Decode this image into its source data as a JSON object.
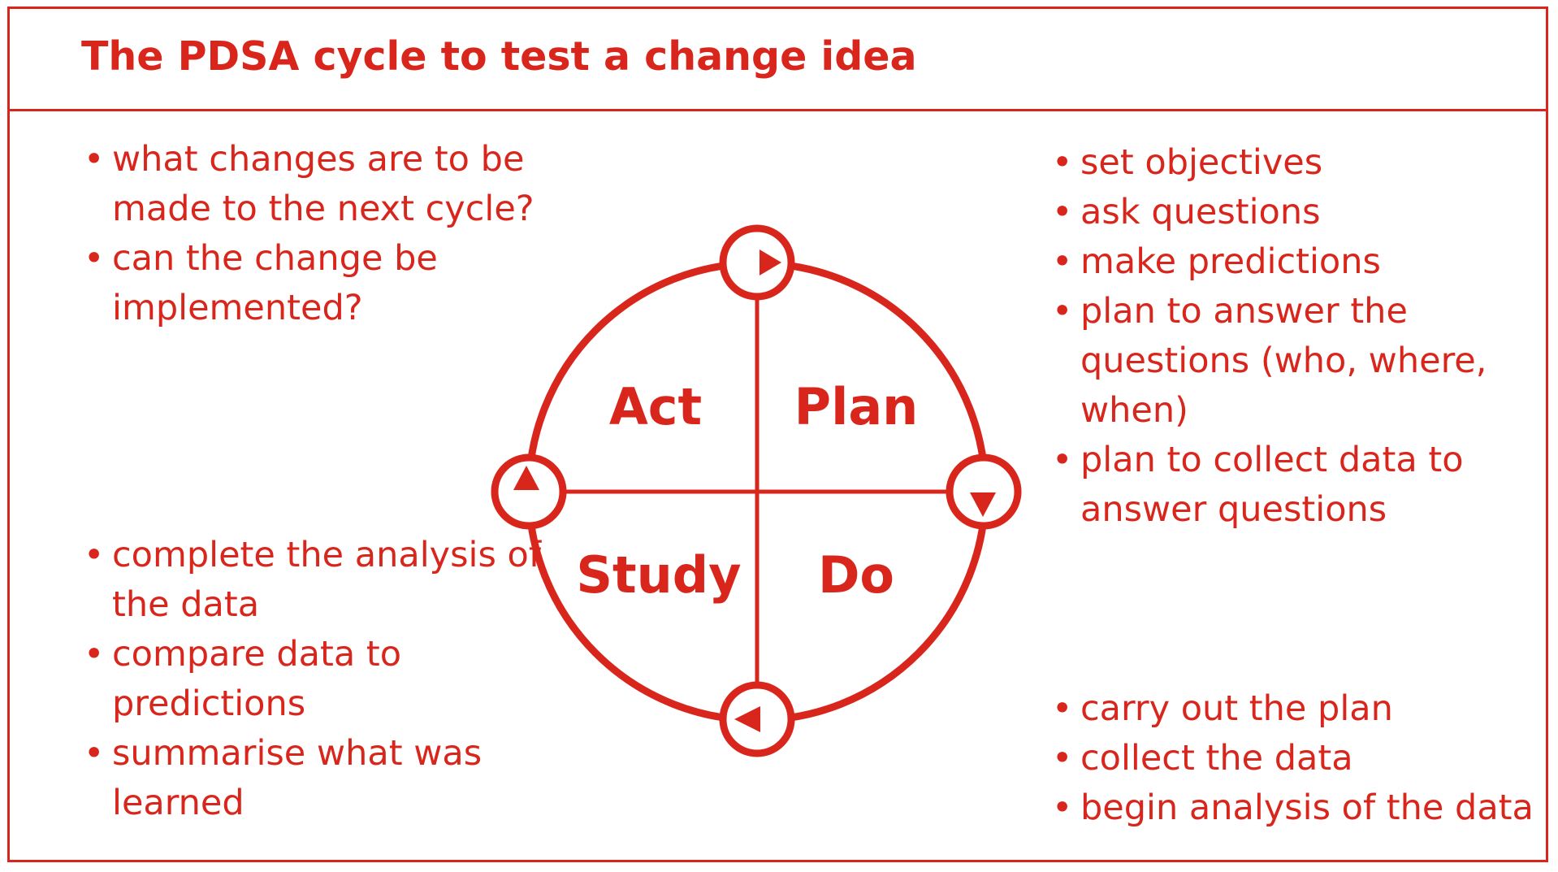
{
  "title": "The PDSA cycle to test a change idea",
  "colors": {
    "accent": "#d9261c",
    "background": "#ffffff"
  },
  "cycle": {
    "quadrants": {
      "act": "Act",
      "plan": "Plan",
      "study": "Study",
      "do": "Do"
    },
    "arrow_icons": [
      "arrow-right-icon",
      "arrow-down-icon",
      "arrow-left-icon",
      "arrow-up-icon"
    ]
  },
  "notes": {
    "act": [
      "what changes are to be made to the next cycle?",
      "can the change be implemented?"
    ],
    "plan": [
      "set objectives",
      "ask questions",
      "make predictions",
      "plan to answer the questions (who, where, when)",
      "plan to collect data to answer questions"
    ],
    "study": [
      "complete the analysis of the data",
      "compare data to predictions",
      "summarise what was learned"
    ],
    "do": [
      "carry out the plan",
      "collect the data",
      "begin analysis of the data"
    ]
  }
}
